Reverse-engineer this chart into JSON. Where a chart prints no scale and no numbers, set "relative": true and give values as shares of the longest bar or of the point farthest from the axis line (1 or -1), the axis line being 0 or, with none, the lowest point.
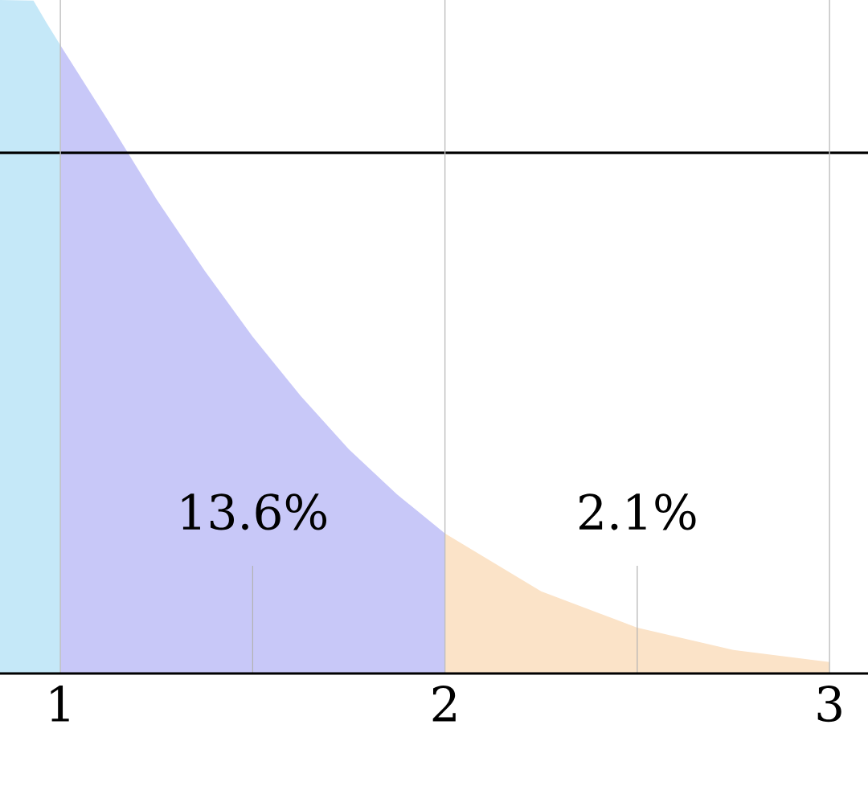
{
  "chart_data": {
    "type": "area",
    "relative": true,
    "xlim": [
      0.843,
      3.1
    ],
    "xticks": [
      1,
      2,
      3
    ],
    "grid": "x",
    "series": [
      {
        "color": "#c5e8f8",
        "x": [
          0.843,
          0.93,
          0.965,
          1.0
        ],
        "values": [
          1,
          0.999,
          0.965,
          0.933
        ]
      },
      {
        "color": "#c8c8f8",
        "x": [
          1,
          1.125,
          1.25,
          1.375,
          1.5,
          1.625,
          1.75,
          1.875,
          2
        ],
        "values": [
          0.933,
          0.82,
          0.704,
          0.598,
          0.5,
          0.412,
          0.333,
          0.266,
          0.208
        ]
      },
      {
        "color": "#fbe3c8",
        "x": [
          2,
          2.25,
          2.5,
          2.75,
          3
        ],
        "values": [
          0.208,
          0.122,
          0.068,
          0.035,
          0.017
        ]
      }
    ],
    "ref_lines": [
      {
        "axis": "y",
        "value": 0.773,
        "color": "#000000"
      },
      {
        "axis": "x",
        "value": 1.5,
        "color": "#b2b2b2"
      },
      {
        "axis": "x",
        "value": 2.5,
        "color": "#b2b2b2"
      }
    ],
    "annotations": [
      "13.6%",
      "2.1%"
    ]
  }
}
